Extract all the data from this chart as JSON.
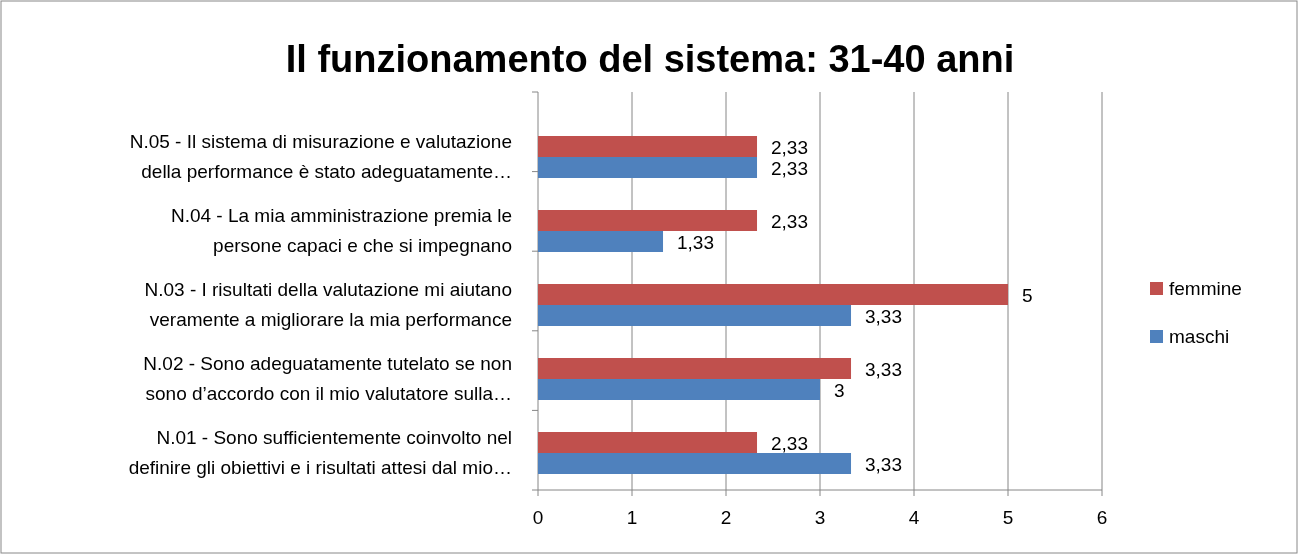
{
  "chart_data": {
    "type": "bar",
    "orientation": "horizontal",
    "title": "Il funzionamento del sistema: 31-40 anni",
    "categories": [
      "N.05 - Il sistema di misurazione e valutazione\ndella performance è stato adeguatamente…",
      "N.04 - La mia amministrazione premia le\npersone capaci e che si impegnano",
      "N.03 - I risultati della valutazione mi aiutano\nveramente a migliorare la mia performance",
      "N.02 - Sono adeguatamente tutelato se non\nsono d’accordo con il mio valutatore sulla…",
      "N.01 - Sono sufficientemente coinvolto nel\ndefinire gli obiettivi e i risultati attesi dal mio…"
    ],
    "series": [
      {
        "name": "femmine",
        "color": "#c0504d",
        "values": [
          2.33,
          2.33,
          5,
          3.33,
          2.33
        ],
        "value_labels": [
          "2,33",
          "2,33",
          "5",
          "3,33",
          "2,33"
        ]
      },
      {
        "name": "maschi",
        "color": "#4f81bd",
        "values": [
          2.33,
          1.33,
          3.33,
          3,
          3.33
        ],
        "value_labels": [
          "2,33",
          "1,33",
          "3,33",
          "3",
          "3,33"
        ]
      }
    ],
    "xlim": [
      0,
      6
    ],
    "xticks": [
      0,
      1,
      2,
      3,
      4,
      5,
      6
    ],
    "grid": "x",
    "legend": "right"
  }
}
